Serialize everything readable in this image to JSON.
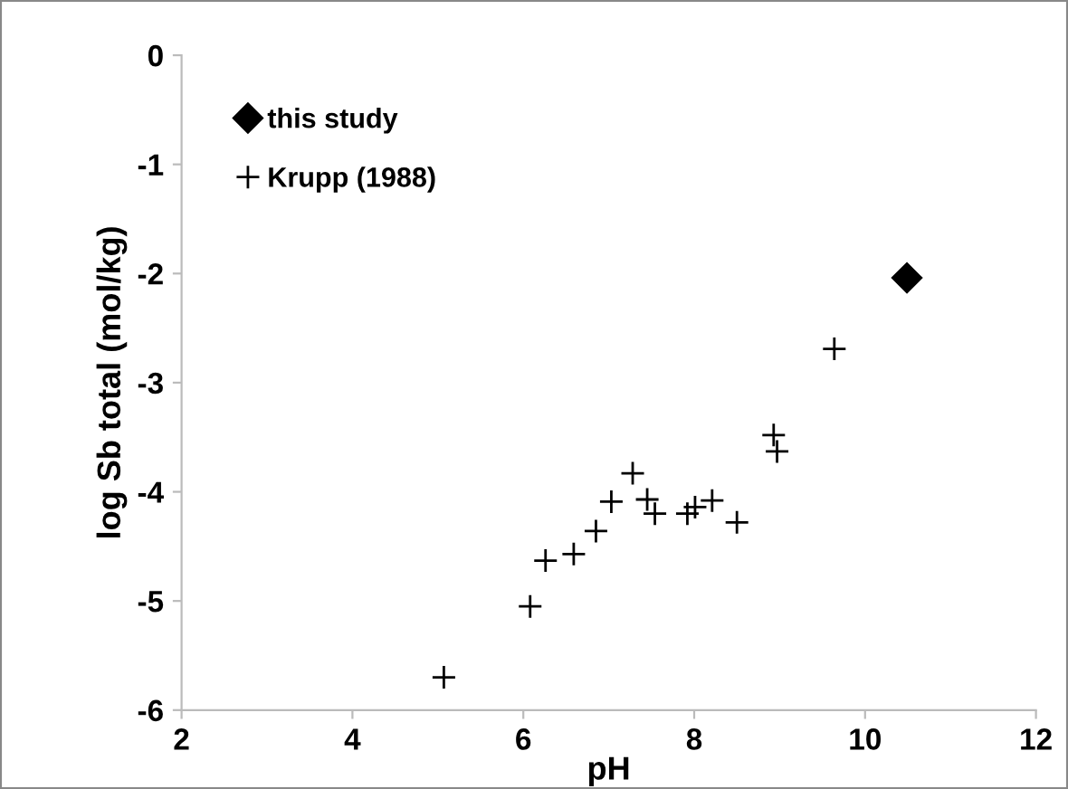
{
  "chart_data": {
    "type": "scatter",
    "xlabel": "pH",
    "ylabel": "log Sb total (mol/kg)",
    "xlim": [
      2,
      12
    ],
    "xticks": [
      2,
      4,
      6,
      8,
      10,
      12
    ],
    "ylim": [
      -6,
      0
    ],
    "yticks": [
      -6,
      -5,
      -4,
      -3,
      -2,
      -1,
      0
    ],
    "grid": false,
    "legend": "top left",
    "series": [
      {
        "name": "this study",
        "color": "#000000",
        "marker": "diamond",
        "x": [
          10.49
        ],
        "values": [
          -2.04
        ]
      },
      {
        "name": "Krupp (1988)",
        "color": "#000000",
        "marker": "cross",
        "x": [
          5.07,
          6.08,
          6.26,
          6.59,
          6.85,
          7.03,
          7.28,
          7.45,
          7.54,
          7.92,
          8.01,
          8.21,
          8.5,
          8.93,
          8.97,
          9.64
        ],
        "values": [
          -5.7,
          -5.05,
          -4.63,
          -4.57,
          -4.36,
          -4.09,
          -3.83,
          -4.07,
          -4.2,
          -4.2,
          -4.14,
          -4.08,
          -4.28,
          -3.48,
          -3.63,
          -2.69
        ]
      }
    ]
  }
}
